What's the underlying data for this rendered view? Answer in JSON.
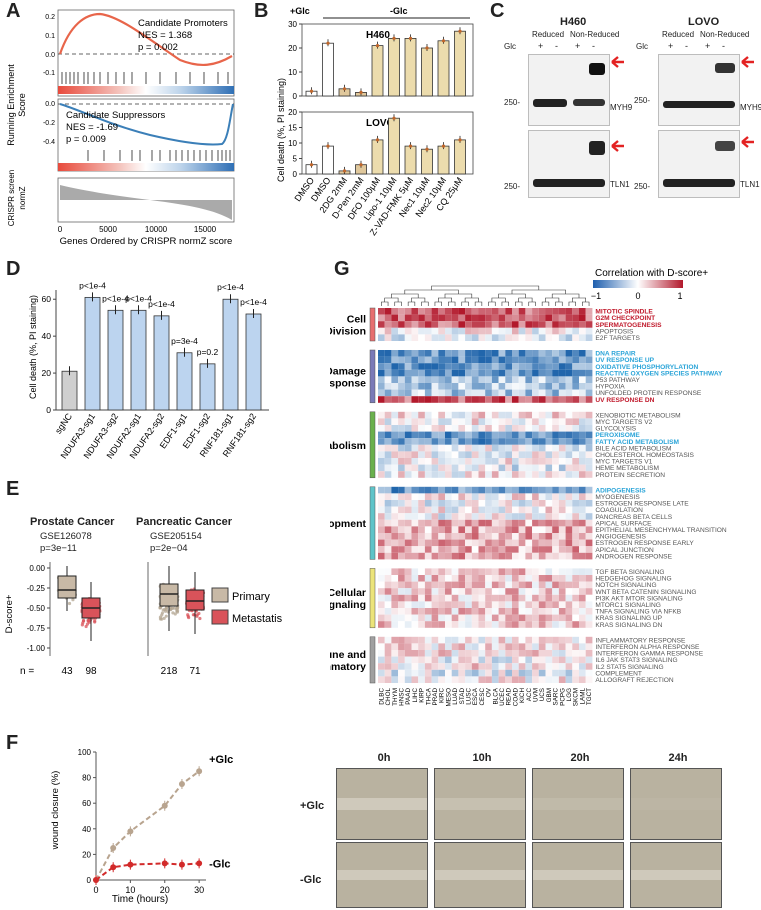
{
  "panels": {
    "A": "A",
    "B": "B",
    "C": "C",
    "D": "D",
    "E": "E",
    "F": "F",
    "G": "G"
  },
  "panel_a": {
    "top": {
      "title": "Candidate Promoters",
      "nes": "NES = 1.368",
      "p": "p = 0.002",
      "ylabel_1": "Running Enrichment",
      "ylabel_2": "Score",
      "yticks": [
        "0.2",
        "0.1",
        "0.0",
        "-0.1"
      ]
    },
    "middle": {
      "title": "Candidate Suppressors",
      "nes": "NES = -1.69",
      "p": "p = 0.009",
      "yticks": [
        "0.0",
        "-0.2",
        "-0.4"
      ]
    },
    "bottom": {
      "ylabel_1": "CRISPR screen",
      "ylabel_2": "normZ"
    },
    "xticks": [
      "0",
      "5000",
      "10000",
      "15000"
    ],
    "xlabel": "Genes Ordered by CRISPR normZ score"
  },
  "panel_b": {
    "glc_plus": "+Glc",
    "glc_minus": "-Glc",
    "ylabel": "Cell death (%, PI staining)",
    "chart_data": {
      "type": "bar",
      "categories": [
        "DMSO",
        "DMSO",
        "2DG 2mM",
        "D-Pen 2mM",
        "DFO 100μM",
        "Lipo-1 10μM",
        "Z-VAD-FMK 5μM",
        "Nec1 10μM",
        "Nec2 10μM",
        "CQ 25μM"
      ],
      "series": [
        {
          "name": "H460",
          "values": [
            2,
            22,
            3,
            1.5,
            21,
            24,
            24,
            20,
            23,
            27
          ],
          "ylim": [
            0,
            30
          ],
          "yticks": [
            "0",
            "10",
            "20",
            "30"
          ]
        },
        {
          "name": "LOVO",
          "values": [
            3,
            9,
            1,
            3,
            11,
            18,
            9,
            8,
            9,
            11
          ],
          "ylim": [
            0,
            20
          ],
          "yticks": [
            "0",
            "5",
            "10",
            "15",
            "20"
          ]
        }
      ]
    }
  },
  "panel_c": {
    "cell_lines": [
      "H460",
      "LOVO"
    ],
    "reduced": "Reduced",
    "non_reduced": "Non-Reduced",
    "glc": "Glc",
    "plus": "+",
    "minus": "-",
    "marker": "250-",
    "proteins": [
      "MYH9",
      "TLN1"
    ],
    "arrow_color": "#e32222"
  },
  "panel_d": {
    "ylabel": "Cell death (%, PI staining)",
    "chart_data": {
      "type": "bar",
      "categories": [
        "sgNC",
        "NDUFA3-sg1",
        "NDUFA3-sg2",
        "NDUFA2-sg1",
        "NDUFA2-sg2",
        "EDF1-sg1",
        "EDF1-sg2",
        "RNF181-sg1",
        "RNF181-sg2"
      ],
      "values": [
        21,
        61,
        54,
        54,
        51,
        31,
        25,
        60,
        52
      ],
      "annotations": [
        "",
        "p<1e-4",
        "p<1e-4",
        "p<1e-4",
        "p<1e-4",
        "p=3e-4",
        "p=0.2",
        "p<1e-4",
        "p<1e-4"
      ],
      "ylim": [
        0,
        65
      ],
      "yticks": [
        "0",
        "20",
        "40",
        "60"
      ]
    }
  },
  "panel_e": {
    "ylabel": "D-score+",
    "yticks": [
      "0.00",
      "-0.25",
      "-0.50",
      "-0.75",
      "-1.00"
    ],
    "legend": [
      "Primary",
      "Metastatis"
    ],
    "colors": {
      "primary": "#c8b9a6",
      "metastasis": "#d9535a"
    },
    "groups": [
      {
        "title": "Prostate Cancer",
        "gse": "GSE126078",
        "p": "p=3e−11",
        "n": [
          "43",
          "98"
        ]
      },
      {
        "title": "Pancreatic Cancer",
        "gse": "GSE205154",
        "p": "p=2e−04",
        "n": [
          "218",
          "71"
        ]
      }
    ],
    "n_label": "n ="
  },
  "panel_f": {
    "ylabel": "wound closure (%)",
    "xlabel": "Time (hours)",
    "chart_data": {
      "type": "line",
      "x": [
        0,
        5,
        10,
        20,
        25,
        30
      ],
      "series": [
        {
          "name": "+Glc",
          "values": [
            0,
            25,
            38,
            58,
            75,
            85
          ],
          "color": "#b8a48f"
        },
        {
          "name": "-Glc",
          "values": [
            0,
            10,
            12,
            13,
            12,
            13
          ],
          "color": "#d22a2a"
        }
      ],
      "xticks": [
        "0",
        "10",
        "20",
        "30"
      ],
      "yticks": [
        "0",
        "20",
        "40",
        "60",
        "80",
        "100"
      ],
      "xlim": [
        0,
        32
      ],
      "ylim": [
        0,
        100
      ]
    },
    "time_points": [
      "0h",
      "10h",
      "20h",
      "24h"
    ],
    "conditions": [
      "+Glc",
      "-Glc"
    ]
  },
  "panel_g": {
    "colorbar_title": "Correlation with D-score+",
    "colorbar_ticks": [
      "−1",
      "0",
      "1"
    ],
    "groups": [
      {
        "name": [
          "Cell",
          "Division"
        ],
        "color": "#e76f6f",
        "pathways": [
          {
            "label": "MITOTIC SPINDLE",
            "hl": "red"
          },
          {
            "label": "G2M CHECKPOINT",
            "hl": "red"
          },
          {
            "label": "SPERMATOGENESIS",
            "hl": "red"
          },
          {
            "label": "APOPTOSIS",
            "hl": ""
          },
          {
            "label": "E2F TARGETS",
            "hl": ""
          }
        ]
      },
      {
        "name": [
          "Damage",
          "Response"
        ],
        "color": "#7a7ab8",
        "pathways": [
          {
            "label": "DNA REPAIR",
            "hl": "blue"
          },
          {
            "label": "UV RESPONSE UP",
            "hl": "blue"
          },
          {
            "label": "OXIDATIVE PHOSPHORYLATION",
            "hl": "blue"
          },
          {
            "label": "REACTIVE OXYGEN SPECIES PATHWAY",
            "hl": "blue"
          },
          {
            "label": "P53 PATHWAY",
            "hl": ""
          },
          {
            "label": "HYPOXIA",
            "hl": ""
          },
          {
            "label": "UNFOLDED PROTEIN RESPONSE",
            "hl": ""
          },
          {
            "label": "UV RESPONSE DN",
            "hl": "red"
          }
        ]
      },
      {
        "name": [
          "Metabolism"
        ],
        "color": "#6ab04c",
        "pathways": [
          {
            "label": "XENOBIOTIC METABOLISM",
            "hl": ""
          },
          {
            "label": "MYC TARGETS V2",
            "hl": ""
          },
          {
            "label": "GLYCOLYSIS",
            "hl": ""
          },
          {
            "label": "PEROXISOME",
            "hl": "blue"
          },
          {
            "label": "FATTY ACID METABOLISM",
            "hl": "blue"
          },
          {
            "label": "BILE ACID METABOLISM",
            "hl": ""
          },
          {
            "label": "CHOLESTEROL HOMEOSTASIS",
            "hl": ""
          },
          {
            "label": "MYC TARGETS V1",
            "hl": ""
          },
          {
            "label": "HEME METABOLISM",
            "hl": ""
          },
          {
            "label": "PROTEIN SECRETION",
            "hl": ""
          }
        ]
      },
      {
        "name": [
          "Development"
        ],
        "color": "#5ec4c9",
        "pathways": [
          {
            "label": "ADIPOGENESIS",
            "hl": "blue"
          },
          {
            "label": "MYOGENESIS",
            "hl": ""
          },
          {
            "label": "ESTROGEN RESPONSE LATE",
            "hl": ""
          },
          {
            "label": "COAGULATION",
            "hl": ""
          },
          {
            "label": "PANCREAS BETA CELLS",
            "hl": ""
          },
          {
            "label": "APICAL SURFACE",
            "hl": ""
          },
          {
            "label": "EPITHELIAL MESENCHYMAL TRANSITION",
            "hl": ""
          },
          {
            "label": "ANGIOGENESIS",
            "hl": ""
          },
          {
            "label": "ESTROGEN RESPONSE EARLY",
            "hl": ""
          },
          {
            "label": "APICAL JUNCTION",
            "hl": ""
          },
          {
            "label": "ANDROGEN RESPONSE",
            "hl": ""
          }
        ]
      },
      {
        "name": [
          "Cellular",
          "Signaling"
        ],
        "color": "#ece47a",
        "pathways": [
          {
            "label": "TGF BETA SIGNALING",
            "hl": ""
          },
          {
            "label": "HEDGEHOG SIGNALING",
            "hl": ""
          },
          {
            "label": "NOTCH SIGNALING",
            "hl": ""
          },
          {
            "label": "WNT BETA CATENIN SIGNALING",
            "hl": ""
          },
          {
            "label": "PI3K AKT MTOR SIGNALING",
            "hl": ""
          },
          {
            "label": "MTORC1 SIGNALING",
            "hl": ""
          },
          {
            "label": "TNFA SIGNALING VIA NFKB",
            "hl": ""
          },
          {
            "label": "KRAS SIGNALING UP",
            "hl": ""
          },
          {
            "label": "KRAS SIGNALING DN",
            "hl": ""
          }
        ]
      },
      {
        "name": [
          "Immune and",
          "Inflammatory"
        ],
        "color": "#a0a0a0",
        "pathways": [
          {
            "label": "INFLAMMATORY RESPONSE",
            "hl": ""
          },
          {
            "label": "INTERFERON ALPHA RESPONSE",
            "hl": ""
          },
          {
            "label": "INTERFERON GAMMA RESPONSE",
            "hl": ""
          },
          {
            "label": "IL6 JAK STAT3 SIGNALING",
            "hl": ""
          },
          {
            "label": "IL2 STAT5 SIGNALING",
            "hl": ""
          },
          {
            "label": "COMPLEMENT",
            "hl": ""
          },
          {
            "label": "ALLOGRAFT REJECTION",
            "hl": ""
          }
        ]
      }
    ],
    "cancer_types": [
      "DLBC",
      "CHOL",
      "THYM",
      "HNSC",
      "PAAD",
      "LIHC",
      "KIRP",
      "THCA",
      "PRAD",
      "KIRC",
      "MESO",
      "LUAD",
      "STAD",
      "LUSC",
      "ESCA",
      "CESC",
      "OV",
      "BLCA",
      "UCEC",
      "READ",
      "COAD",
      "KICH",
      "ACC",
      "UVM",
      "UCS",
      "GBM",
      "SARC",
      "PCPG",
      "LGG",
      "SKCM",
      "LAML",
      "TGCT"
    ],
    "highlight_colors": {
      "red": "#c0192b",
      "blue": "#2aa4d8",
      "normal": "#555555"
    }
  }
}
